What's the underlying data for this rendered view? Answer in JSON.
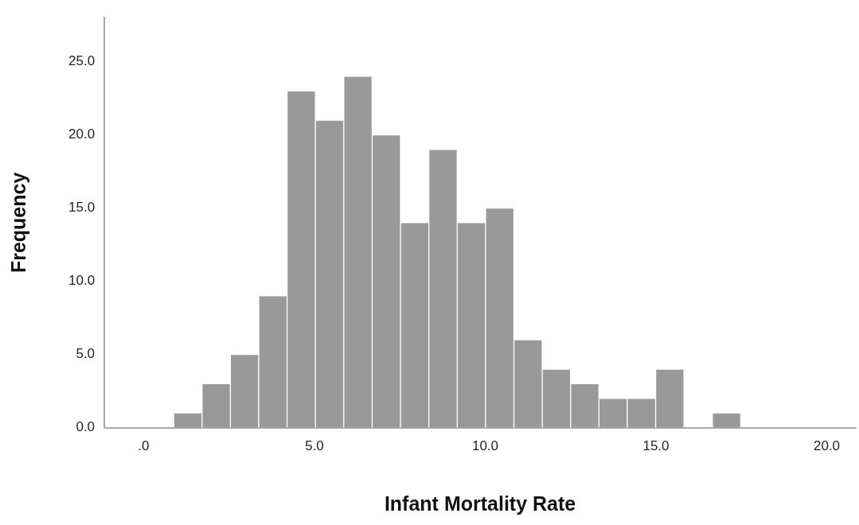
{
  "chart_data": {
    "type": "histogram",
    "xlabel": "Infant Mortality Rate",
    "ylabel": "Frequency",
    "bins": [
      0.88,
      1.71,
      2.54,
      3.37,
      4.2,
      5.03,
      5.86,
      6.69,
      7.52,
      8.35,
      9.18,
      10.01,
      10.84,
      11.67,
      12.5,
      13.33,
      14.16,
      14.99,
      15.82,
      16.65,
      17.48
    ],
    "values": [
      1,
      3,
      5,
      9,
      23,
      21,
      24,
      20,
      14,
      19,
      14,
      15,
      6,
      4,
      3,
      2,
      2,
      4,
      0,
      1
    ],
    "color": "#999999",
    "xlim": [
      -1.15,
      20.85
    ],
    "xticks": [
      {
        "value": 0,
        "label": ".0"
      },
      {
        "value": 5,
        "label": "5.0"
      },
      {
        "value": 10,
        "label": "10.0"
      },
      {
        "value": 15,
        "label": "15.0"
      },
      {
        "value": 20,
        "label": "20.0"
      }
    ],
    "ylim": [
      0,
      28
    ],
    "yticks": [
      {
        "value": 0,
        "label": "0.0"
      },
      {
        "value": 5,
        "label": "5.0"
      },
      {
        "value": 10,
        "label": "10.0"
      },
      {
        "value": 15,
        "label": "15.0"
      },
      {
        "value": 20,
        "label": "20.0"
      },
      {
        "value": 25,
        "label": "25.0"
      }
    ],
    "grid": false,
    "legend": false
  }
}
